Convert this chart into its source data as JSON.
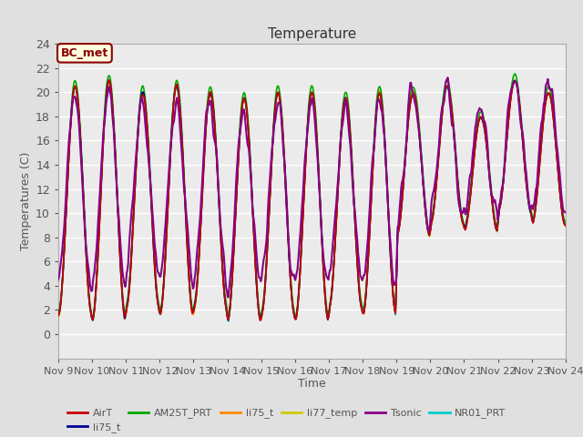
{
  "title": "Temperature",
  "ylabel": "Temperatures (C)",
  "xlabel": "Time",
  "annotation": "BC_met",
  "annotation_color": "#8B0000",
  "annotation_bg": "#FFFFE0",
  "xlim": [
    0,
    15
  ],
  "ylim": [
    -2,
    24
  ],
  "yticks": [
    0,
    2,
    4,
    6,
    8,
    10,
    12,
    14,
    16,
    18,
    20,
    22,
    24
  ],
  "xtick_labels": [
    "Nov 9",
    "Nov 10",
    "Nov 11",
    "Nov 12",
    "Nov 13",
    "Nov 14",
    "Nov 15",
    "Nov 16",
    "Nov 17",
    "Nov 18",
    "Nov 19",
    "Nov 20",
    "Nov 21",
    "Nov 22",
    "Nov 23",
    "Nov 24"
  ],
  "legend_entries": [
    {
      "label": "AirT",
      "color": "#CC0000"
    },
    {
      "label": "li75_t",
      "color": "#000099"
    },
    {
      "label": "AM25T_PRT",
      "color": "#00AA00"
    },
    {
      "label": "li75_t",
      "color": "#FF8800"
    },
    {
      "label": "li77_temp",
      "color": "#CCCC00"
    },
    {
      "label": "Tsonic",
      "color": "#880088"
    },
    {
      "label": "NR01_PRT",
      "color": "#00CCCC"
    }
  ],
  "background_color": "#E0E0E0",
  "plot_bg_color": "#EBEBEB",
  "grid_color": "#FFFFFF",
  "fig_width": 6.4,
  "fig_height": 4.8,
  "fig_dpi": 100
}
